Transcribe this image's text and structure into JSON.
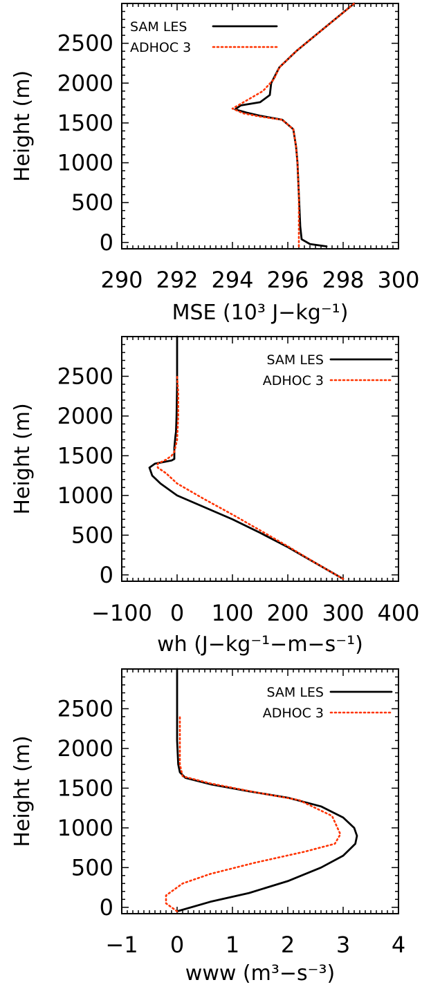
{
  "chart_data": [
    {
      "type": "line",
      "xlabel": "MSE (10³ J−kg⁻¹)",
      "ylabel": "Height (m)",
      "xlim": [
        290,
        300
      ],
      "ylim": [
        -80,
        3000
      ],
      "xticks": [
        290,
        292,
        294,
        296,
        298,
        300
      ],
      "xtick_labels": [
        "290",
        "292",
        "294",
        "296",
        "298",
        "300"
      ],
      "yticks": [
        0,
        500,
        1000,
        1500,
        2000,
        2500
      ],
      "ytick_labels": [
        "0",
        "500",
        "1000",
        "1500",
        "2000",
        "2500"
      ],
      "legend_position": "top-left",
      "series": [
        {
          "name": "SAM LES",
          "color": "#000000",
          "style": "solid",
          "x": [
            297.4,
            296.8,
            296.5,
            296.45,
            296.4,
            296.35,
            296.3,
            296.2,
            295.8,
            295.0,
            294.5,
            294.1,
            294.3,
            295.0,
            295.35,
            295.4,
            295.7,
            296.3,
            297.0,
            297.7,
            298.4
          ],
          "y": [
            -50,
            -20,
            40,
            200,
            600,
            1000,
            1200,
            1420,
            1540,
            1590,
            1630,
            1670,
            1720,
            1760,
            1850,
            2000,
            2200,
            2400,
            2600,
            2800,
            3000
          ]
        },
        {
          "name": "ADHOC 3",
          "color": "#ff3300",
          "style": "dotted",
          "x": [
            296.4,
            296.4,
            296.4,
            296.35,
            296.3,
            296.2,
            295.8,
            295.0,
            294.4,
            294.0,
            294.5,
            295.1,
            295.5,
            295.7,
            296.3,
            297.0,
            297.7,
            298.4
          ],
          "y": [
            -50,
            200,
            600,
            1000,
            1200,
            1420,
            1540,
            1580,
            1620,
            1680,
            1780,
            1900,
            2050,
            2200,
            2400,
            2600,
            2800,
            3000
          ]
        }
      ]
    },
    {
      "type": "line",
      "xlabel": "wh (J−kg⁻¹−m−s⁻¹)",
      "ylabel": "Height (m)",
      "xlim": [
        -100,
        400
      ],
      "ylim": [
        -80,
        3000
      ],
      "xticks": [
        -100,
        0,
        100,
        200,
        300,
        400
      ],
      "xtick_labels": [
        "−100",
        "0",
        "100",
        "200",
        "300",
        "400"
      ],
      "yticks": [
        0,
        500,
        1000,
        1500,
        2000,
        2500
      ],
      "ytick_labels": [
        "0",
        "500",
        "1000",
        "1500",
        "2000",
        "2500"
      ],
      "legend_position": "top-right",
      "series": [
        {
          "name": "SAM LES",
          "color": "#000000",
          "style": "solid",
          "x": [
            300,
            250,
            200,
            150,
            100,
            50,
            0,
            -30,
            -45,
            -50,
            -40,
            -25,
            -10,
            -5,
            -5,
            -3,
            -2,
            -1,
            0,
            0
          ],
          "y": [
            -50,
            150,
            350,
            530,
            700,
            850,
            1000,
            1150,
            1250,
            1350,
            1400,
            1420,
            1440,
            1460,
            1600,
            1750,
            1800,
            2000,
            2400,
            3000
          ]
        },
        {
          "name": "ADHOC 3",
          "color": "#ff3300",
          "style": "dotted",
          "x": [
            300,
            250,
            200,
            150,
            100,
            50,
            0,
            -20,
            -35,
            -35,
            -20,
            -10,
            -5,
            0,
            2,
            2,
            0
          ],
          "y": [
            -50,
            150,
            360,
            560,
            760,
            950,
            1150,
            1280,
            1350,
            1400,
            1450,
            1500,
            1550,
            1700,
            2000,
            2300,
            2500
          ]
        }
      ]
    },
    {
      "type": "line",
      "xlabel": "www (m³−s⁻³)",
      "ylabel": "Height (m)",
      "xlim": [
        -1,
        4
      ],
      "ylim": [
        -80,
        3000
      ],
      "xticks": [
        -1,
        0,
        1,
        2,
        3,
        4
      ],
      "xtick_labels": [
        "−1",
        "0",
        "1",
        "2",
        "3",
        "4"
      ],
      "yticks": [
        0,
        500,
        1000,
        1500,
        2000,
        2500
      ],
      "ytick_labels": [
        "0",
        "500",
        "1000",
        "1500",
        "2000",
        "2500"
      ],
      "legend_position": "top-right",
      "series": [
        {
          "name": "SAM LES",
          "color": "#000000",
          "style": "solid",
          "x": [
            0.0,
            0.6,
            1.3,
            2.0,
            2.6,
            3.0,
            3.22,
            3.25,
            3.2,
            3.0,
            2.6,
            2.0,
            1.3,
            0.6,
            0.15,
            0.05,
            0.02,
            0.0,
            0.0
          ],
          "y": [
            -50,
            70,
            180,
            330,
            500,
            650,
            800,
            900,
            1000,
            1130,
            1270,
            1380,
            1460,
            1550,
            1630,
            1700,
            1800,
            2100,
            3000
          ]
        },
        {
          "name": "ADHOC 3",
          "color": "#ff3300",
          "style": "dotted",
          "x": [
            0.0,
            -0.2,
            -0.2,
            0.1,
            0.6,
            1.4,
            2.3,
            2.85,
            2.95,
            2.8,
            2.2,
            1.4,
            0.6,
            0.1,
            0.05,
            0.05
          ],
          "y": [
            -50,
            50,
            150,
            300,
            420,
            560,
            700,
            800,
            920,
            1150,
            1350,
            1450,
            1560,
            1650,
            1800,
            2400
          ]
        }
      ]
    }
  ]
}
